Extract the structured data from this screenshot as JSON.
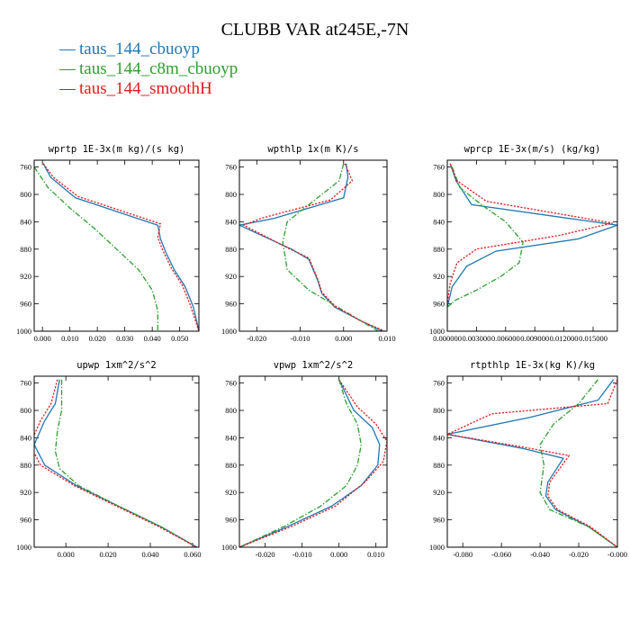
{
  "figure": {
    "title": "CLUBB VAR at245E,-7N",
    "legend": [
      {
        "name": "taus_144_cbuoyp",
        "color": "#1f77b4",
        "dash": "solid"
      },
      {
        "name": "taus_144_c8m_cbuoyp",
        "color": "#2ca02c",
        "dash": "dashdot"
      },
      {
        "name": "taus_144_smoothH",
        "color": "#e31a1c",
        "dash": "dotted"
      }
    ]
  },
  "chart_data": [
    {
      "type": "line",
      "title": "wprtp  1E-3x(m kg)/(s kg)",
      "xlim": [
        -0.003,
        0.057
      ],
      "ylim": [
        1000,
        750
      ],
      "xticks": [
        0.0,
        0.01,
        0.02,
        0.03,
        0.04,
        0.05
      ],
      "xtick_labels": [
        "0.000",
        "0.010",
        "0.020",
        "0.030",
        "0.040",
        "0.050"
      ],
      "yticks": [
        760,
        800,
        840,
        880,
        920,
        960,
        1000
      ],
      "series": [
        {
          "name": "taus_144_cbuoyp",
          "x": [
            0.0003,
            0.003,
            0.012,
            0.042,
            0.043,
            0.045,
            0.048,
            0.052,
            0.055,
            0.057
          ],
          "y": [
            755,
            775,
            805,
            845,
            865,
            885,
            910,
            935,
            965,
            1000
          ]
        },
        {
          "name": "taus_144_c8m_cbuoyp",
          "x": [
            -0.003,
            0.002,
            0.01,
            0.019,
            0.027,
            0.035,
            0.04,
            0.042,
            0.042
          ],
          "y": [
            760,
            790,
            820,
            850,
            880,
            910,
            940,
            970,
            1000
          ]
        },
        {
          "name": "taus_144_smoothH",
          "x": [
            0.0003,
            0.004,
            0.013,
            0.043,
            0.042,
            0.044,
            0.047,
            0.051,
            0.054,
            0.057
          ],
          "y": [
            755,
            775,
            803,
            843,
            863,
            883,
            908,
            933,
            963,
            1000
          ]
        }
      ]
    },
    {
      "type": "line",
      "title": "wpthlp  1x(m K)/s",
      "xlim": [
        -0.024,
        0.01
      ],
      "ylim": [
        1000,
        750
      ],
      "xticks": [
        -0.02,
        -0.01,
        0.0,
        0.01
      ],
      "xtick_labels": [
        "-0.020",
        "-0.010",
        "0.000",
        "0.010"
      ],
      "yticks": [
        760,
        800,
        840,
        880,
        920,
        960,
        1000
      ],
      "series": [
        {
          "name": "taus_144_cbuoyp",
          "x": [
            0.0006,
            0.001,
            0.0,
            -0.016,
            -0.024,
            -0.012,
            -0.008,
            -0.006,
            -0.005,
            -0.002,
            0.004,
            0.009
          ],
          "y": [
            755,
            775,
            805,
            835,
            845,
            880,
            895,
            925,
            945,
            965,
            985,
            1000
          ]
        },
        {
          "name": "taus_144_c8m_cbuoyp",
          "x": [
            0.0,
            -0.001,
            -0.007,
            -0.013,
            -0.014,
            -0.013,
            -0.008,
            0.0,
            0.008
          ],
          "y": [
            755,
            780,
            810,
            840,
            870,
            910,
            940,
            970,
            1000
          ]
        },
        {
          "name": "taus_144_smoothH",
          "x": [
            0.0003,
            0.002,
            -0.003,
            -0.019,
            -0.023,
            -0.013,
            -0.008,
            -0.006,
            -0.005,
            -0.002,
            0.004,
            0.0095
          ],
          "y": [
            755,
            780,
            808,
            835,
            845,
            878,
            893,
            923,
            943,
            963,
            985,
            1000
          ]
        }
      ]
    },
    {
      "type": "line",
      "title": "wprcp  1E-3x(m/s) (kg/kg)",
      "xlim": [
        0.0,
        0.0175
      ],
      "ylim": [
        1000,
        750
      ],
      "xticks": [
        0.0,
        0.003,
        0.006,
        0.009,
        0.012,
        0.015
      ],
      "xtick_labels": [
        "0.000000",
        "0.003000",
        "0.006000",
        "0.009000",
        "0.012000",
        "0.015000"
      ],
      "yticks": [
        760,
        800,
        840,
        880,
        920,
        960,
        1000
      ],
      "series": [
        {
          "name": "taus_144_cbuoyp",
          "x": [
            0.0003,
            0.0009,
            0.0025,
            0.0175,
            0.0135,
            0.005,
            0.002,
            0.0005,
            0.0
          ],
          "y": [
            755,
            780,
            815,
            845,
            865,
            883,
            905,
            935,
            965
          ]
        },
        {
          "name": "taus_144_c8m_cbuoyp",
          "x": [
            0.0005,
            0.0013,
            0.0035,
            0.006,
            0.0078,
            0.0074,
            0.0055,
            0.003,
            0.0008,
            0.0
          ],
          "y": [
            760,
            790,
            815,
            840,
            870,
            900,
            920,
            940,
            955,
            965
          ]
        },
        {
          "name": "taus_144_smoothH",
          "x": [
            0.0003,
            0.001,
            0.004,
            0.017,
            0.0115,
            0.003,
            0.001,
            0.0003,
            0.0
          ],
          "y": [
            755,
            780,
            810,
            842,
            860,
            880,
            900,
            930,
            960
          ]
        }
      ]
    },
    {
      "type": "line",
      "title": "upwp  1xm^2/s^2",
      "xlim": [
        -0.015,
        0.063
      ],
      "ylim": [
        1000,
        750
      ],
      "xticks": [
        0.0,
        0.02,
        0.04,
        0.06
      ],
      "xtick_labels": [
        "0.000",
        "0.020",
        "0.040",
        "0.060"
      ],
      "yticks": [
        760,
        800,
        840,
        880,
        920,
        960,
        1000
      ],
      "series": [
        {
          "name": "taus_144_cbuoyp",
          "x": [
            -0.003,
            -0.005,
            -0.01,
            -0.015,
            -0.01,
            0.005,
            0.025,
            0.045,
            0.062
          ],
          "y": [
            755,
            790,
            815,
            850,
            880,
            910,
            940,
            970,
            1000
          ]
        },
        {
          "name": "taus_144_c8m_cbuoyp",
          "x": [
            -0.002,
            -0.002,
            -0.004,
            -0.005,
            -0.003,
            0.006,
            0.025,
            0.045,
            0.062
          ],
          "y": [
            755,
            800,
            830,
            860,
            885,
            910,
            940,
            970,
            1000
          ]
        },
        {
          "name": "taus_144_smoothH",
          "x": [
            -0.004,
            -0.007,
            -0.012,
            -0.017,
            -0.012,
            0.004,
            0.024,
            0.044,
            0.062
          ],
          "y": [
            755,
            790,
            815,
            850,
            880,
            910,
            940,
            970,
            1000
          ]
        }
      ]
    },
    {
      "type": "line",
      "title": "vpwp  1xm^2/s^2",
      "xlim": [
        -0.027,
        0.013
      ],
      "ylim": [
        1000,
        750
      ],
      "xticks": [
        -0.02,
        -0.01,
        0.0,
        0.01
      ],
      "xtick_labels": [
        "-0.020",
        "-0.010",
        "0.000",
        "0.010"
      ],
      "yticks": [
        760,
        800,
        840,
        880,
        920,
        960,
        1000
      ],
      "series": [
        {
          "name": "taus_144_cbuoyp",
          "x": [
            0.0,
            0.004,
            0.009,
            0.011,
            0.0105,
            0.006,
            -0.002,
            -0.014,
            -0.027
          ],
          "y": [
            755,
            800,
            825,
            850,
            880,
            910,
            940,
            970,
            1000
          ]
        },
        {
          "name": "taus_144_c8m_cbuoyp",
          "x": [
            0.0,
            0.002,
            0.005,
            0.006,
            0.005,
            0.002,
            -0.005,
            -0.015,
            -0.027
          ],
          "y": [
            755,
            790,
            820,
            850,
            880,
            910,
            940,
            970,
            1000
          ]
        },
        {
          "name": "taus_144_smoothH",
          "x": [
            0.0,
            0.005,
            0.01,
            0.013,
            0.012,
            0.007,
            -0.001,
            -0.013,
            -0.027
          ],
          "y": [
            755,
            795,
            820,
            845,
            875,
            905,
            940,
            970,
            1000
          ]
        }
      ]
    },
    {
      "type": "line",
      "title": "rtpthlp  1E-3x(kg K)/kg",
      "xlim": [
        -0.088,
        0.0
      ],
      "ylim": [
        1000,
        750
      ],
      "xticks": [
        -0.08,
        -0.06,
        -0.04,
        -0.02,
        0.0
      ],
      "xtick_labels": [
        "-0.080",
        "-0.060",
        "-0.040",
        "-0.020",
        "-0.000"
      ],
      "yticks": [
        760,
        800,
        840,
        880,
        920,
        960,
        1000
      ],
      "series": [
        {
          "name": "taus_144_cbuoyp",
          "x": [
            -0.002,
            -0.01,
            -0.045,
            -0.088,
            -0.05,
            -0.028,
            -0.036,
            -0.037,
            -0.032,
            -0.015,
            0.0
          ],
          "y": [
            755,
            785,
            810,
            835,
            855,
            870,
            905,
            925,
            945,
            970,
            1000
          ]
        },
        {
          "name": "taus_144_c8m_cbuoyp",
          "x": [
            -0.01,
            -0.02,
            -0.033,
            -0.04,
            -0.038,
            -0.04,
            -0.035,
            -0.015,
            0.0
          ],
          "y": [
            755,
            790,
            820,
            850,
            880,
            920,
            945,
            970,
            1000
          ]
        },
        {
          "name": "taus_144_smoothH",
          "x": [
            0.0,
            -0.005,
            -0.065,
            -0.088,
            -0.05,
            -0.025,
            -0.035,
            -0.036,
            -0.031,
            -0.014,
            0.0
          ],
          "y": [
            755,
            790,
            805,
            835,
            853,
            866,
            905,
            925,
            945,
            970,
            1000
          ]
        }
      ]
    }
  ]
}
